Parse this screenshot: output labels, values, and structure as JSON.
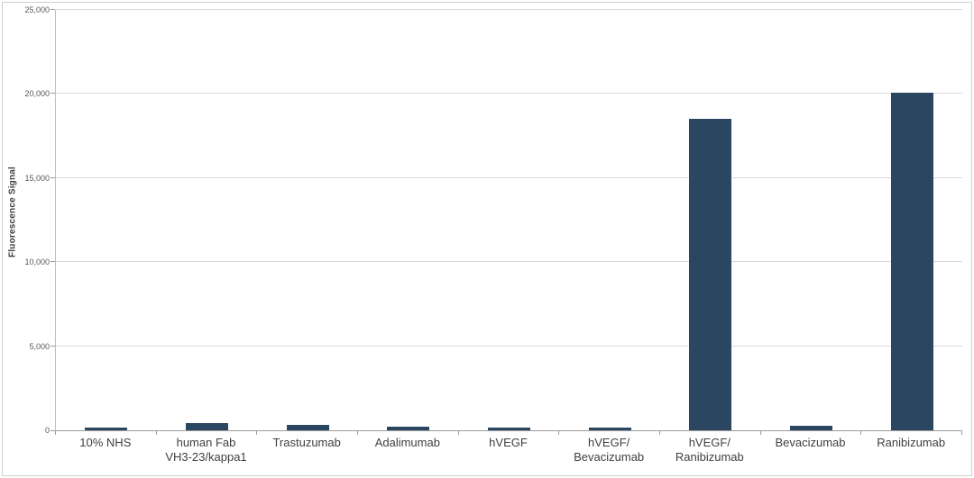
{
  "chart_data": {
    "type": "bar",
    "title": "",
    "xlabel": "",
    "ylabel": "Fluorescence Signal",
    "categories": [
      "10% NHS",
      "human Fab\nVH3-23/kappa1",
      "Trastuzumab",
      "Adalimumab",
      "hVEGF",
      "hVEGF/\nBevacizumab",
      "hVEGF/\nRanibizumab",
      "Bevacizumab",
      "Ranibizumab"
    ],
    "values": [
      150,
      450,
      300,
      200,
      175,
      175,
      18500,
      250,
      20100
    ],
    "ylim": [
      0,
      25000
    ],
    "ytick_step": 5000,
    "ytick_labels": [
      "0",
      "5,000",
      "10,000",
      "15,000",
      "20,000",
      "25,000"
    ],
    "grid": true,
    "legend": false
  },
  "colors": {
    "bar": "#2b4660",
    "gridline": "#d9d9d9",
    "axis": "#9b9b9b",
    "ytick_label": "#595959",
    "category_label": "#3f3f3f"
  }
}
